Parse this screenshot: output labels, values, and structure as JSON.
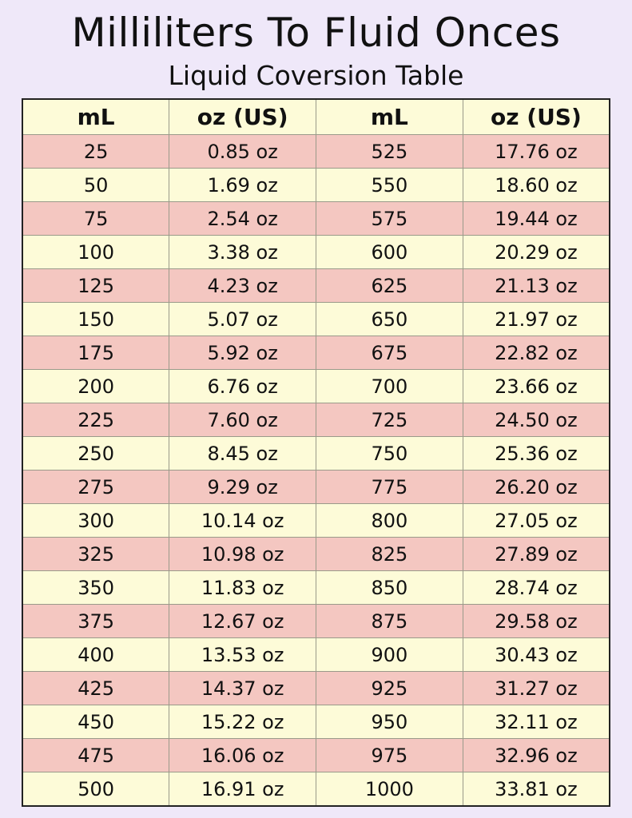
{
  "title": "Milliliters To Fluid Onces",
  "subtitle": "Liquid Coversion Table",
  "colors": {
    "background": "#efe8f9",
    "row_pink": "#f4c7c1",
    "row_cream": "#fdfbd8"
  },
  "headers": [
    "mL",
    "oz (US)",
    "mL",
    "oz (US)"
  ],
  "rows": [
    [
      "25",
      "0.85 oz",
      "525",
      "17.76 oz"
    ],
    [
      "50",
      "1.69 oz",
      "550",
      "18.60 oz"
    ],
    [
      "75",
      "2.54 oz",
      "575",
      "19.44 oz"
    ],
    [
      "100",
      "3.38 oz",
      "600",
      "20.29 oz"
    ],
    [
      "125",
      "4.23 oz",
      "625",
      "21.13 oz"
    ],
    [
      "150",
      "5.07 oz",
      "650",
      "21.97 oz"
    ],
    [
      "175",
      "5.92 oz",
      "675",
      "22.82 oz"
    ],
    [
      "200",
      "6.76 oz",
      "700",
      "23.66 oz"
    ],
    [
      "225",
      "7.60 oz",
      "725",
      "24.50 oz"
    ],
    [
      "250",
      "8.45 oz",
      "750",
      "25.36 oz"
    ],
    [
      "275",
      "9.29 oz",
      "775",
      "26.20 oz"
    ],
    [
      "300",
      "10.14 oz",
      "800",
      "27.05 oz"
    ],
    [
      "325",
      "10.98 oz",
      "825",
      "27.89 oz"
    ],
    [
      "350",
      "11.83 oz",
      "850",
      "28.74 oz"
    ],
    [
      "375",
      "12.67 oz",
      "875",
      "29.58 oz"
    ],
    [
      "400",
      "13.53 oz",
      "900",
      "30.43 oz"
    ],
    [
      "425",
      "14.37 oz",
      "925",
      "31.27 oz"
    ],
    [
      "450",
      "15.22 oz",
      "950",
      "32.11 oz"
    ],
    [
      "475",
      "16.06 oz",
      "975",
      "32.96 oz"
    ],
    [
      "500",
      "16.91 oz",
      "1000",
      "33.81 oz"
    ]
  ]
}
